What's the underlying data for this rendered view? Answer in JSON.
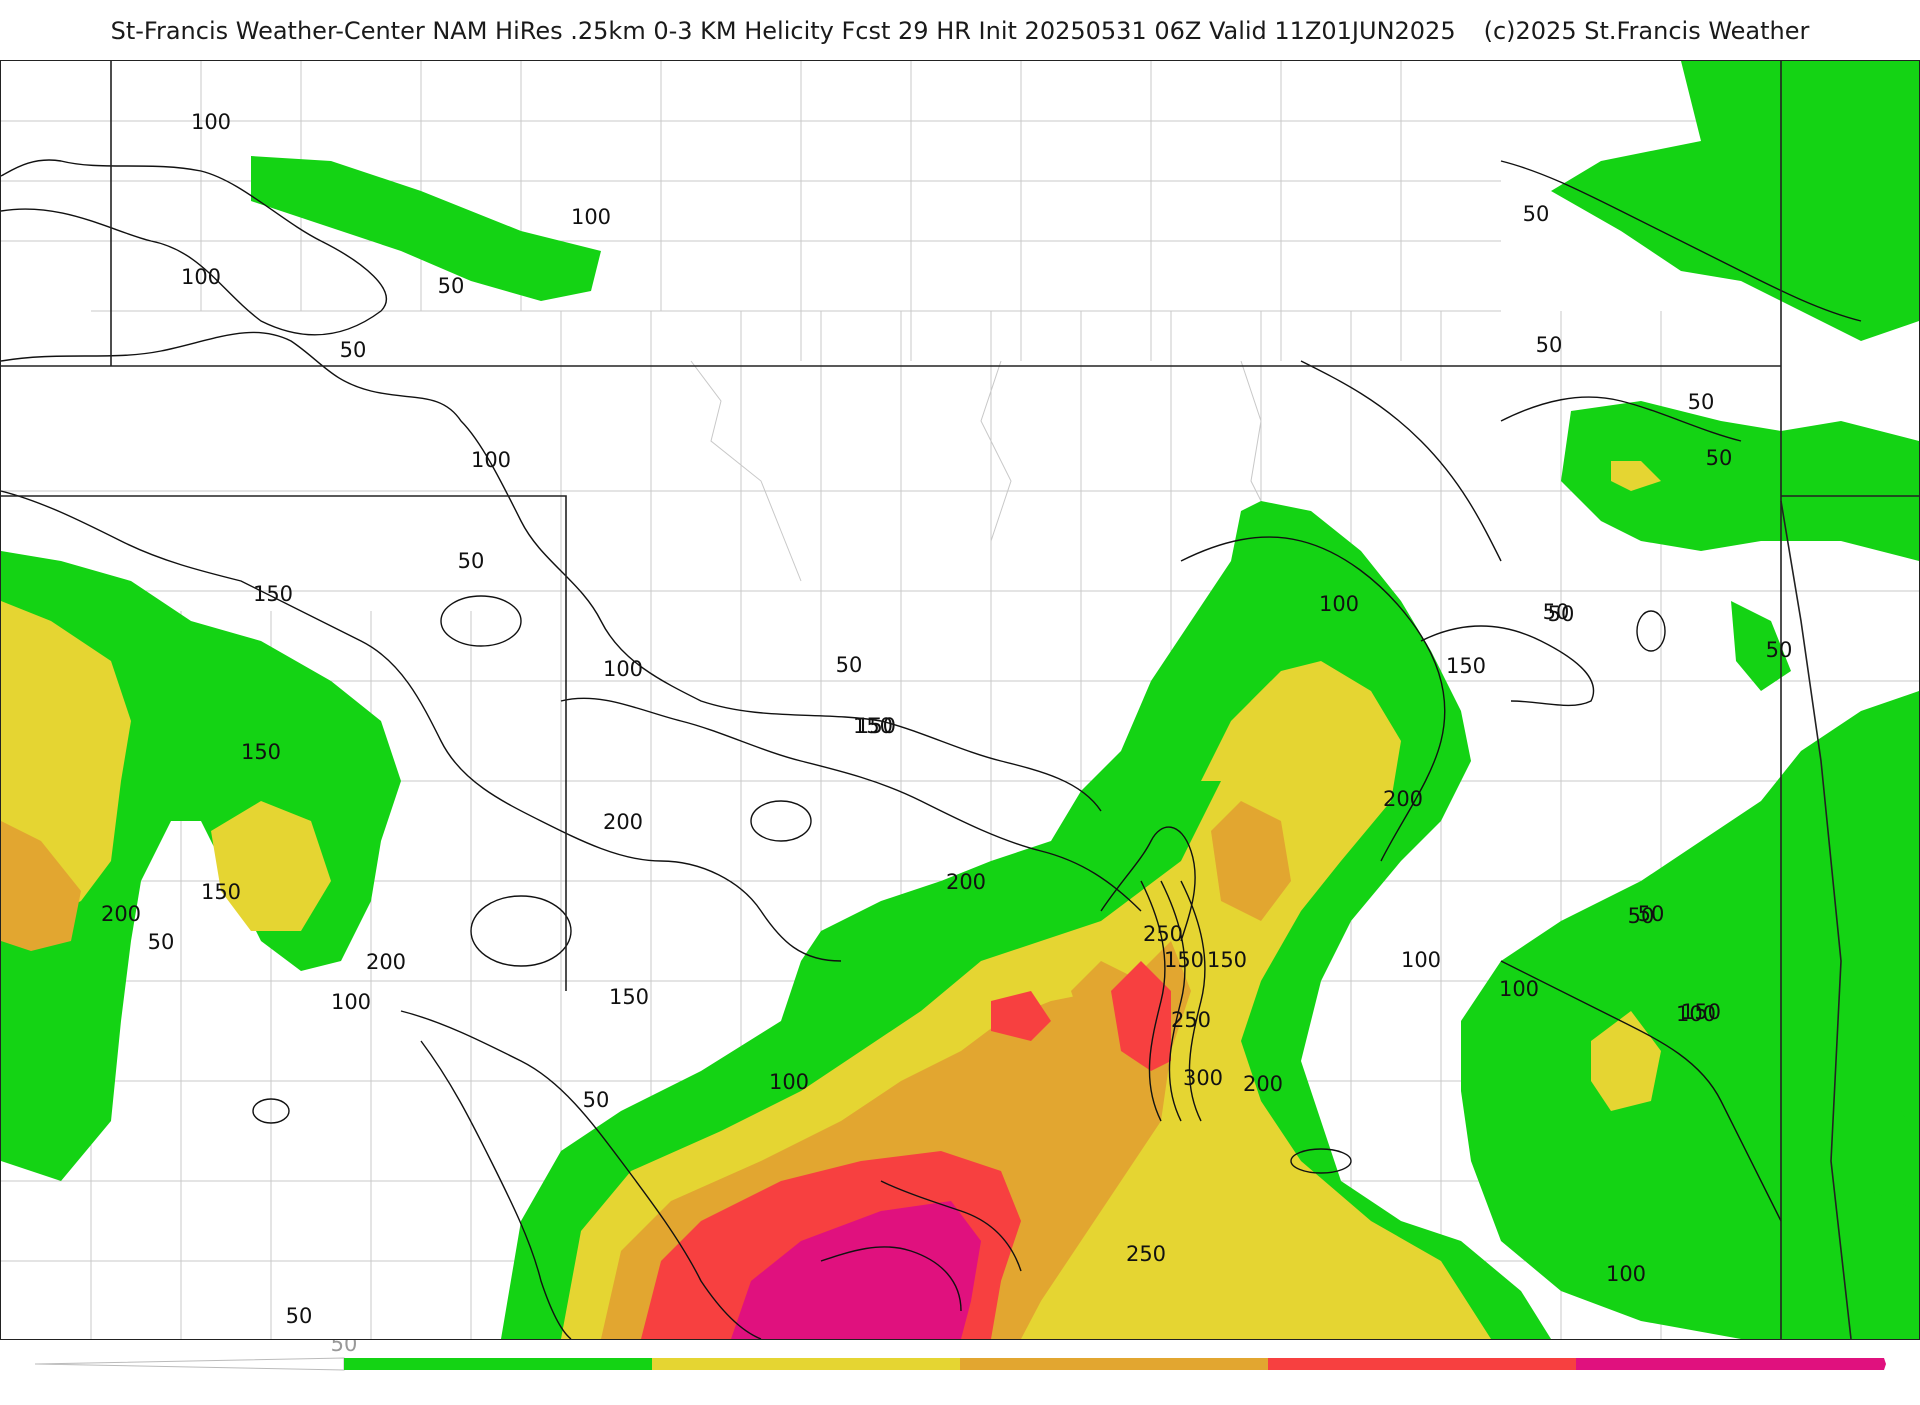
{
  "header": {
    "title": "St-Francis Weather-Center NAM HiRes .25km 0-3 KM Helicity Fcst 29 HR Init 20250531 06Z  Valid 11Z01JUN2025",
    "copyright": "(c)2025 St.Francis Weather"
  },
  "colors": {
    "c50": "#14d314",
    "c100": "#e5d532",
    "c150": "#e2a630",
    "c200": "#f74040",
    "c250": "#e0117e",
    "contour": "#111111",
    "border": "#222222",
    "county": "#c8c8c8"
  },
  "colorbar": {
    "tick_label": "50",
    "bins": [
      {
        "from": 50,
        "to": 100,
        "color": "#14d314"
      },
      {
        "from": 100,
        "to": 150,
        "color": "#e5d532"
      },
      {
        "from": 150,
        "to": 200,
        "color": "#e2a630"
      },
      {
        "from": 200,
        "to": 250,
        "color": "#f74040"
      },
      {
        "from": 250,
        "to": 300,
        "color": "#e0117e"
      }
    ]
  },
  "contour_labels": [
    "100",
    "100",
    "100",
    "50",
    "50",
    "50",
    "50",
    "50",
    "50",
    "50",
    "100",
    "50",
    "150",
    "150",
    "150",
    "200",
    "50",
    "200",
    "100",
    "50",
    "100",
    "150",
    "200",
    "200",
    "150",
    "50",
    "150",
    "250",
    "150",
    "250",
    "150",
    "300",
    "200",
    "100",
    "50",
    "150",
    "50",
    "200",
    "50",
    "100",
    "100",
    "50",
    "250",
    "100",
    "150",
    "50",
    "100",
    "100"
  ]
}
